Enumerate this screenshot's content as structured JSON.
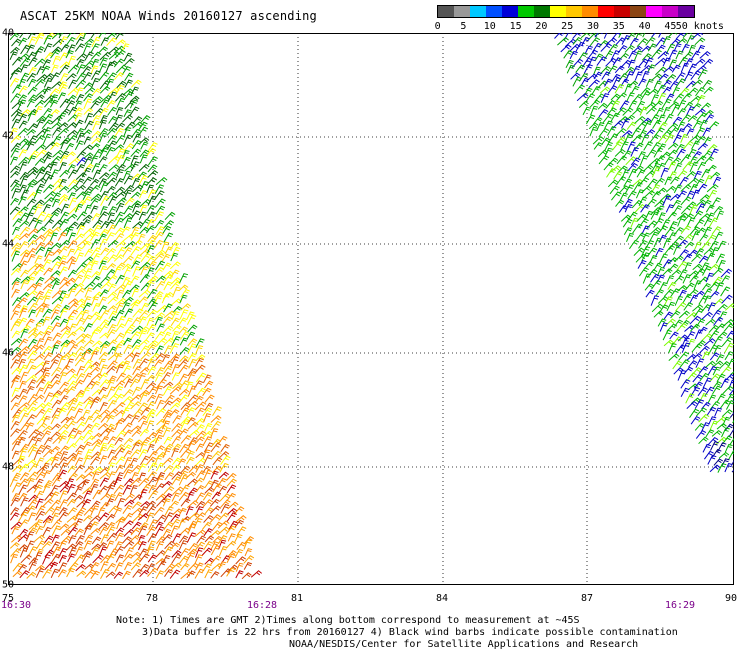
{
  "title": "ASCAT 25KM NOAA Winds 20160127 ascending",
  "scale": {
    "colors": [
      "#555555",
      "#999999",
      "#00c8ff",
      "#0050ff",
      "#0000d8",
      "#00c800",
      "#007800",
      "#ffff00",
      "#ffc800",
      "#ff8c00",
      "#ff0000",
      "#c80000",
      "#8b4513",
      "#ff00ff",
      "#c800c8",
      "#6a00a0"
    ],
    "labels": [
      "0",
      "5",
      "10",
      "15",
      "20",
      "25",
      "30",
      "35",
      "40",
      "45",
      "50 knots"
    ]
  },
  "map": {
    "lon_ticks": [
      "75",
      "78",
      "81",
      "84",
      "87",
      "90"
    ],
    "lat_ticks": [
      "40",
      "42",
      "44",
      "46",
      "48",
      "50"
    ],
    "times": [
      "16:30",
      "16:28",
      "16:29"
    ]
  },
  "notes": {
    "line1": "Note: 1) Times are GMT 2)Times along bottom correspond to measurement at ~45S",
    "line2": "3)Data buffer is 22 hrs from 20160127 4) Black wind barbs indicate possible contamination",
    "line3": "NOAA/NESDIS/Center for Satellite Applications and Research"
  }
}
